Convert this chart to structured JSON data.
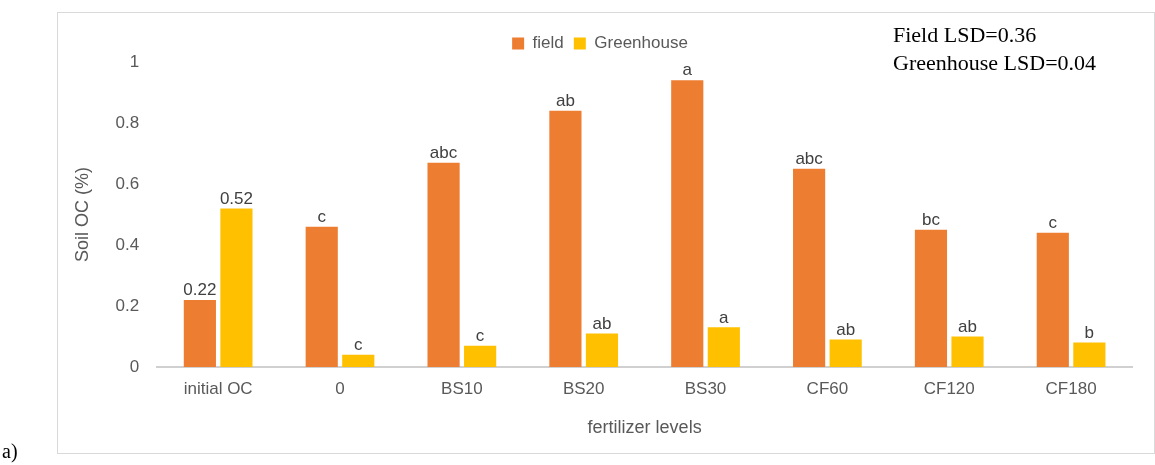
{
  "chart_data": {
    "type": "bar",
    "xlabel": "fertilizer levels",
    "ylabel": "Soil OC (%)",
    "categories": [
      "initial OC",
      "0",
      "BS10",
      "BS20",
      "BS30",
      "CF60",
      "CF120",
      "CF180"
    ],
    "series": [
      {
        "name": "field",
        "color": "#ed7d31",
        "values": [
          0.22,
          0.46,
          0.67,
          0.84,
          0.94,
          0.65,
          0.45,
          0.44
        ],
        "value_labels": [
          "0.22",
          "c",
          "abc",
          "ab",
          "a",
          "abc",
          "bc",
          "c"
        ]
      },
      {
        "name": "Greenhouse",
        "color": "#ffc000",
        "values": [
          0.52,
          0.04,
          0.07,
          0.11,
          0.13,
          0.09,
          0.1,
          0.08
        ],
        "value_labels": [
          "0.52",
          "c",
          "c",
          "ab",
          "a",
          "ab",
          "ab",
          "b"
        ]
      }
    ],
    "ylim": [
      0,
      1
    ],
    "yticks": [
      0,
      0.2,
      0.4,
      0.6,
      0.8,
      1
    ],
    "grid": false,
    "legend": "top",
    "annotations": [
      "Field LSD=0.36",
      "Greenhouse LSD=0.04",
      "a)"
    ]
  }
}
